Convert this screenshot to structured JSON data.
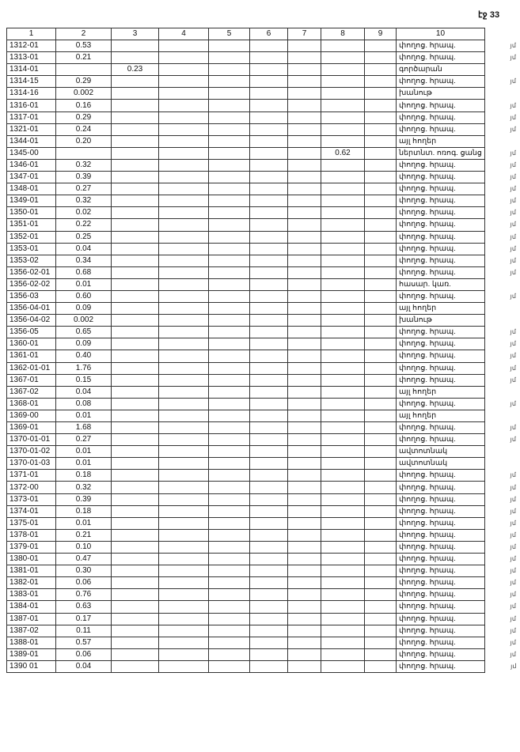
{
  "page_label": "էջ 33",
  "columns": [
    "1",
    "2",
    "3",
    "4",
    "5",
    "6",
    "7",
    "8",
    "9",
    "10"
  ],
  "rows": [
    [
      "1312-01",
      "0.53",
      "",
      "",
      "",
      "",
      "",
      "",
      "",
      "փողոց. հրապ.",
      "յմ"
    ],
    [
      "1313-01",
      "0.21",
      "",
      "",
      "",
      "",
      "",
      "",
      "",
      "փողոց. հրապ.",
      "յմ"
    ],
    [
      "1314-01",
      "",
      "0.23",
      "",
      "",
      "",
      "",
      "",
      "",
      "գործարան",
      ""
    ],
    [
      "1314-15",
      "0.29",
      "",
      "",
      "",
      "",
      "",
      "",
      "",
      "փողոց. հրապ.",
      "յմ"
    ],
    [
      "1314-16",
      "0.002",
      "",
      "",
      "",
      "",
      "",
      "",
      "",
      "խանութ",
      ""
    ],
    [
      "1316-01",
      "0.16",
      "",
      "",
      "",
      "",
      "",
      "",
      "",
      "փողոց. հրապ.",
      "յմ"
    ],
    [
      "1317-01",
      "0.29",
      "",
      "",
      "",
      "",
      "",
      "",
      "",
      "փողոց. հրապ.",
      "յմ"
    ],
    [
      "1321-01",
      "0.24",
      "",
      "",
      "",
      "",
      "",
      "",
      "",
      "փողոց. հրապ.",
      "յմ"
    ],
    [
      "1344-01",
      "0.20",
      "",
      "",
      "",
      "",
      "",
      "",
      "",
      "այլ հողեր",
      ""
    ],
    [
      "1345-00",
      "",
      "",
      "",
      "",
      "",
      "",
      "0.62",
      "",
      "ներտնտ. ոռոգ. ցանց",
      "յմ"
    ],
    [
      "1346-01",
      "0.32",
      "",
      "",
      "",
      "",
      "",
      "",
      "",
      "փողոց. հրապ.",
      "յմ"
    ],
    [
      "1347-01",
      "0.39",
      "",
      "",
      "",
      "",
      "",
      "",
      "",
      "փողոց. հրապ.",
      "յմ"
    ],
    [
      "1348-01",
      "0.27",
      "",
      "",
      "",
      "",
      "",
      "",
      "",
      "փողոց. հրապ.",
      "յմ"
    ],
    [
      "1349-01",
      "0.32",
      "",
      "",
      "",
      "",
      "",
      "",
      "",
      "փողոց. հրապ.",
      "յմ"
    ],
    [
      "1350-01",
      "0.02",
      "",
      "",
      "",
      "",
      "",
      "",
      "",
      "փողոց. հրապ.",
      "յմ"
    ],
    [
      "1351-01",
      "0.22",
      "",
      "",
      "",
      "",
      "",
      "",
      "",
      "փողոց. հրապ.",
      "յմ"
    ],
    [
      "1352-01",
      "0.25",
      "",
      "",
      "",
      "",
      "",
      "",
      "",
      "փողոց. հրապ.",
      "յմ"
    ],
    [
      "1353-01",
      "0.04",
      "",
      "",
      "",
      "",
      "",
      "",
      "",
      "փողոց. հրապ.",
      "յմ"
    ],
    [
      "1353-02",
      "0.34",
      "",
      "",
      "",
      "",
      "",
      "",
      "",
      "փողոց. հրապ.",
      "յմ"
    ],
    [
      "1356-02-01",
      "0.68",
      "",
      "",
      "",
      "",
      "",
      "",
      "",
      "փողոց. հրապ.",
      "յմ"
    ],
    [
      "1356-02-02",
      "0.01",
      "",
      "",
      "",
      "",
      "",
      "",
      "",
      "հասար. կառ.",
      ""
    ],
    [
      "1356-03",
      "0.60",
      "",
      "",
      "",
      "",
      "",
      "",
      "",
      "փողոց. հրապ.",
      "յմ"
    ],
    [
      "1356-04-01",
      "0.09",
      "",
      "",
      "",
      "",
      "",
      "",
      "",
      "այլ հողեր",
      ""
    ],
    [
      "1356-04-02",
      "0.002",
      "",
      "",
      "",
      "",
      "",
      "",
      "",
      "խանութ",
      ""
    ],
    [
      "1356-05",
      "0.65",
      "",
      "",
      "",
      "",
      "",
      "",
      "",
      "փողոց. հրապ.",
      "յմ"
    ],
    [
      "1360-01",
      "0.09",
      "",
      "",
      "",
      "",
      "",
      "",
      "",
      "փողոց. հրապ.",
      "յմ"
    ],
    [
      "1361-01",
      "0.40",
      "",
      "",
      "",
      "",
      "",
      "",
      "",
      "փողոց. հրապ.",
      "յմ"
    ],
    [
      "1362-01-01",
      "1.76",
      "",
      "",
      "",
      "",
      "",
      "",
      "",
      "փողոց. հրապ.",
      "յմ"
    ],
    [
      "1367-01",
      "0.15",
      "",
      "",
      "",
      "",
      "",
      "",
      "",
      "փողոց. հրապ.",
      "յմ"
    ],
    [
      "1367-02",
      "0.04",
      "",
      "",
      "",
      "",
      "",
      "",
      "",
      "այլ հողեր",
      ""
    ],
    [
      "1368-01",
      "0.08",
      "",
      "",
      "",
      "",
      "",
      "",
      "",
      "փողոց. հրապ.",
      "յմ"
    ],
    [
      "1369-00",
      "0.01",
      "",
      "",
      "",
      "",
      "",
      "",
      "",
      "այլ հողեր",
      ""
    ],
    [
      "1369-01",
      "1.68",
      "",
      "",
      "",
      "",
      "",
      "",
      "",
      "փողոց. հրապ.",
      "յմ"
    ],
    [
      "1370-01-01",
      "0.27",
      "",
      "",
      "",
      "",
      "",
      "",
      "",
      "փողոց. հրապ.",
      "յմ"
    ],
    [
      "1370-01-02",
      "0.01",
      "",
      "",
      "",
      "",
      "",
      "",
      "",
      "ավտոտնակ",
      ""
    ],
    [
      "1370-01-03",
      "0.01",
      "",
      "",
      "",
      "",
      "",
      "",
      "",
      "ավտոտնակ",
      ""
    ],
    [
      "1371-01",
      "0.18",
      "",
      "",
      "",
      "",
      "",
      "",
      "",
      "փողոց. հրապ.",
      "յմ"
    ],
    [
      "1372-00",
      "0.32",
      "",
      "",
      "",
      "",
      "",
      "",
      "",
      "փողոց. հրապ.",
      "յմ"
    ],
    [
      "1373-01",
      "0.39",
      "",
      "",
      "",
      "",
      "",
      "",
      "",
      "փողոց. հրապ.",
      "յմ"
    ],
    [
      "1374-01",
      "0.18",
      "",
      "",
      "",
      "",
      "",
      "",
      "",
      "փողոց. հրապ.",
      "յմ"
    ],
    [
      "1375-01",
      "0.01",
      "",
      "",
      "",
      "",
      "",
      "",
      "",
      "փողոց. հրապ.",
      "յմ"
    ],
    [
      "1378-01",
      "0.21",
      "",
      "",
      "",
      "",
      "",
      "",
      "",
      "փողոց. հրապ.",
      "յմ"
    ],
    [
      "1379-01",
      "0.10",
      "",
      "",
      "",
      "",
      "",
      "",
      "",
      "փողոց. հրապ.",
      "յմ"
    ],
    [
      "1380-01",
      "0.47",
      "",
      "",
      "",
      "",
      "",
      "",
      "",
      "փողոց. հրապ.",
      "յմ"
    ],
    [
      "1381-01",
      "0.30",
      "",
      "",
      "",
      "",
      "",
      "",
      "",
      "փողոց. հրապ.",
      "յմ"
    ],
    [
      "1382-01",
      "0.06",
      "",
      "",
      "",
      "",
      "",
      "",
      "",
      "փողոց. հրապ.",
      "յմ"
    ],
    [
      "1383-01",
      "0.76",
      "",
      "",
      "",
      "",
      "",
      "",
      "",
      "փողոց. հրապ.",
      "յմ"
    ],
    [
      "1384-01",
      "0.63",
      "",
      "",
      "",
      "",
      "",
      "",
      "",
      "փողոց. հրապ.",
      "յմ"
    ],
    [
      "1387-01",
      "0.17",
      "",
      "",
      "",
      "",
      "",
      "",
      "",
      "փողոց. հրապ.",
      "յմ"
    ],
    [
      "1387-02",
      "0.11",
      "",
      "",
      "",
      "",
      "",
      "",
      "",
      "փողոց. հրապ.",
      "յմ"
    ],
    [
      "1388-01",
      "0.57",
      "",
      "",
      "",
      "",
      "",
      "",
      "",
      "փողոց. հրապ.",
      "յմ"
    ],
    [
      "1389-01",
      "0.06",
      "",
      "",
      "",
      "",
      "",
      "",
      "",
      "փողոց. հրապ.",
      "յմ"
    ],
    [
      "1390 01",
      "0.04",
      "",
      "",
      "",
      "",
      "",
      "",
      "",
      "փողոց. հրապ.",
      "յմ"
    ]
  ]
}
